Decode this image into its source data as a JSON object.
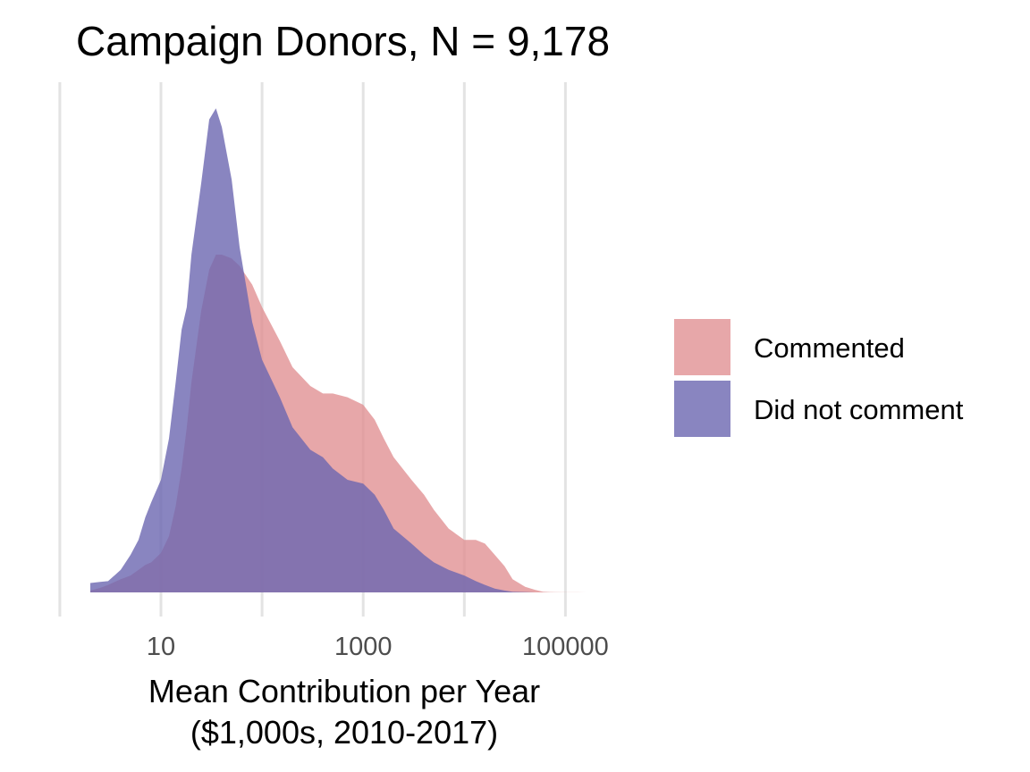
{
  "chart_data": {
    "type": "area",
    "title": "Campaign Donors, N = 9,178",
    "xlabel_lines": [
      "Mean Contribution per Year",
      "($1,000s, 2010-2017)"
    ],
    "ylabel": "",
    "x_scale": "log10",
    "xlim": [
      1.6,
      165000
    ],
    "x_ticks": [
      10,
      1000,
      100000
    ],
    "x_tick_labels": [
      "10",
      "1000",
      "100000"
    ],
    "minor_gridlines": [
      1,
      100,
      10000
    ],
    "grid": "vertical only",
    "legend_position": "right",
    "y_axis_shown": false,
    "series": [
      {
        "name": "Commented",
        "color": "#e08e91",
        "opacity": 0.78,
        "x": [
          2,
          2.5,
          3,
          4,
          5,
          6,
          7,
          8,
          10,
          12,
          14,
          16,
          18,
          20,
          25,
          30,
          35,
          40,
          50,
          60,
          80,
          100,
          150,
          200,
          300,
          400,
          500,
          700,
          1000,
          1300,
          1600,
          2000,
          3000,
          4000,
          5000,
          7000,
          10000,
          13000,
          16000,
          20000,
          25000,
          30000,
          40000,
          50000,
          60000,
          70000,
          80000,
          100000,
          130000,
          160000
        ],
        "y": [
          0.005,
          0.012,
          0.02,
          0.035,
          0.045,
          0.06,
          0.073,
          0.08,
          0.105,
          0.15,
          0.23,
          0.33,
          0.44,
          0.56,
          0.75,
          0.86,
          0.9,
          0.9,
          0.89,
          0.87,
          0.82,
          0.76,
          0.67,
          0.6,
          0.55,
          0.53,
          0.53,
          0.52,
          0.5,
          0.46,
          0.41,
          0.36,
          0.3,
          0.26,
          0.22,
          0.17,
          0.14,
          0.14,
          0.13,
          0.1,
          0.07,
          0.035,
          0.015,
          0.007,
          0.002,
          0.001,
          0.0005,
          0.0003,
          0.0002,
          0.0001
        ]
      },
      {
        "name": "Did not comment",
        "color": "#6c66b0",
        "opacity": 0.8,
        "x": [
          2,
          2.5,
          3,
          4,
          5,
          6,
          7,
          8,
          10,
          12,
          14,
          16,
          18,
          20,
          25,
          30,
          35,
          40,
          50,
          60,
          80,
          100,
          150,
          200,
          300,
          400,
          500,
          700,
          1000,
          1300,
          1600,
          2000,
          3000,
          4000,
          5000,
          7000,
          10000,
          13000,
          16000,
          20000,
          25000,
          30000,
          40000,
          50000
        ],
        "y": [
          0.025,
          0.028,
          0.03,
          0.06,
          0.1,
          0.14,
          0.2,
          0.24,
          0.3,
          0.41,
          0.56,
          0.7,
          0.76,
          0.9,
          1.09,
          1.26,
          1.29,
          1.24,
          1.1,
          0.92,
          0.72,
          0.62,
          0.52,
          0.44,
          0.38,
          0.36,
          0.33,
          0.3,
          0.29,
          0.26,
          0.22,
          0.17,
          0.13,
          0.1,
          0.08,
          0.06,
          0.045,
          0.03,
          0.02,
          0.01,
          0.005,
          0.002,
          0.001,
          0
        ]
      }
    ]
  }
}
